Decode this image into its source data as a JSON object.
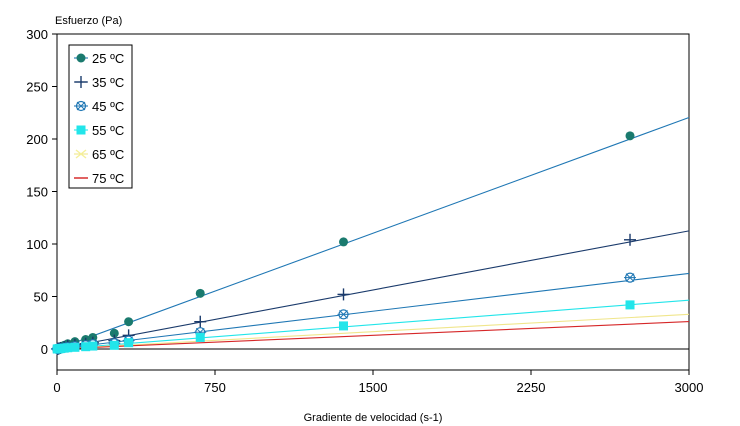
{
  "chart_data": {
    "type": "scatter",
    "ylabel": "Esfuerzo (Pa)",
    "xlabel": "Gradiente de velocidad (s-1)",
    "xlim": [
      0,
      3000
    ],
    "ylim": [
      -20,
      300
    ],
    "xticks": [
      0,
      750,
      1500,
      2250,
      3000
    ],
    "yticks": [
      0,
      50,
      100,
      150,
      200,
      250,
      300
    ],
    "grid": false,
    "legend_position": "top-left",
    "x": [
      1,
      3,
      5,
      10,
      17,
      34,
      51,
      85,
      136,
      170,
      272,
      340,
      680,
      1360,
      2720
    ],
    "series": [
      {
        "name": "25 ºC",
        "marker": "filled-circle",
        "color": "#1a7a6e",
        "line_color": "#1f77b4",
        "values": [
          0.1,
          0.2,
          0.5,
          1,
          2,
          3.5,
          5,
          7,
          9,
          11,
          15,
          26,
          53,
          102,
          203
        ],
        "fit_slope": 0.0735
      },
      {
        "name": "35 ºC",
        "marker": "plus",
        "color": "#1a3a6b",
        "line_color": "#1a3a6b",
        "values": [
          0.05,
          0.1,
          0.3,
          0.6,
          1,
          2,
          3,
          4,
          5,
          6,
          8,
          13,
          26,
          52,
          104
        ],
        "fit_slope": 0.0375
      },
      {
        "name": "45 ºC",
        "marker": "open-star",
        "color": "#1f77b4",
        "line_color": "#1f77b4",
        "values": [
          0.03,
          0.07,
          0.2,
          0.4,
          0.6,
          1.2,
          1.8,
          2.5,
          3.5,
          4.5,
          5.5,
          8,
          16,
          33,
          68
        ],
        "fit_slope": 0.024
      },
      {
        "name": "55 ºC",
        "marker": "filled-square",
        "color": "#22e5ea",
        "line_color": "#22e5ea",
        "values": [
          0.02,
          0.05,
          0.1,
          0.3,
          0.4,
          0.8,
          1.2,
          1.6,
          2.2,
          2.8,
          3.5,
          6,
          11,
          22,
          42
        ],
        "fit_slope": 0.0155
      },
      {
        "name": "65 ºC",
        "marker": "x",
        "color": "#f5f09a",
        "line_color": "#f0e68c",
        "values": [],
        "fit_slope": 0.011
      },
      {
        "name": "75 ºC",
        "marker": "dash",
        "color": "#d62728",
        "line_color": "#d62728",
        "values": [],
        "fit_slope": 0.0087
      }
    ]
  }
}
